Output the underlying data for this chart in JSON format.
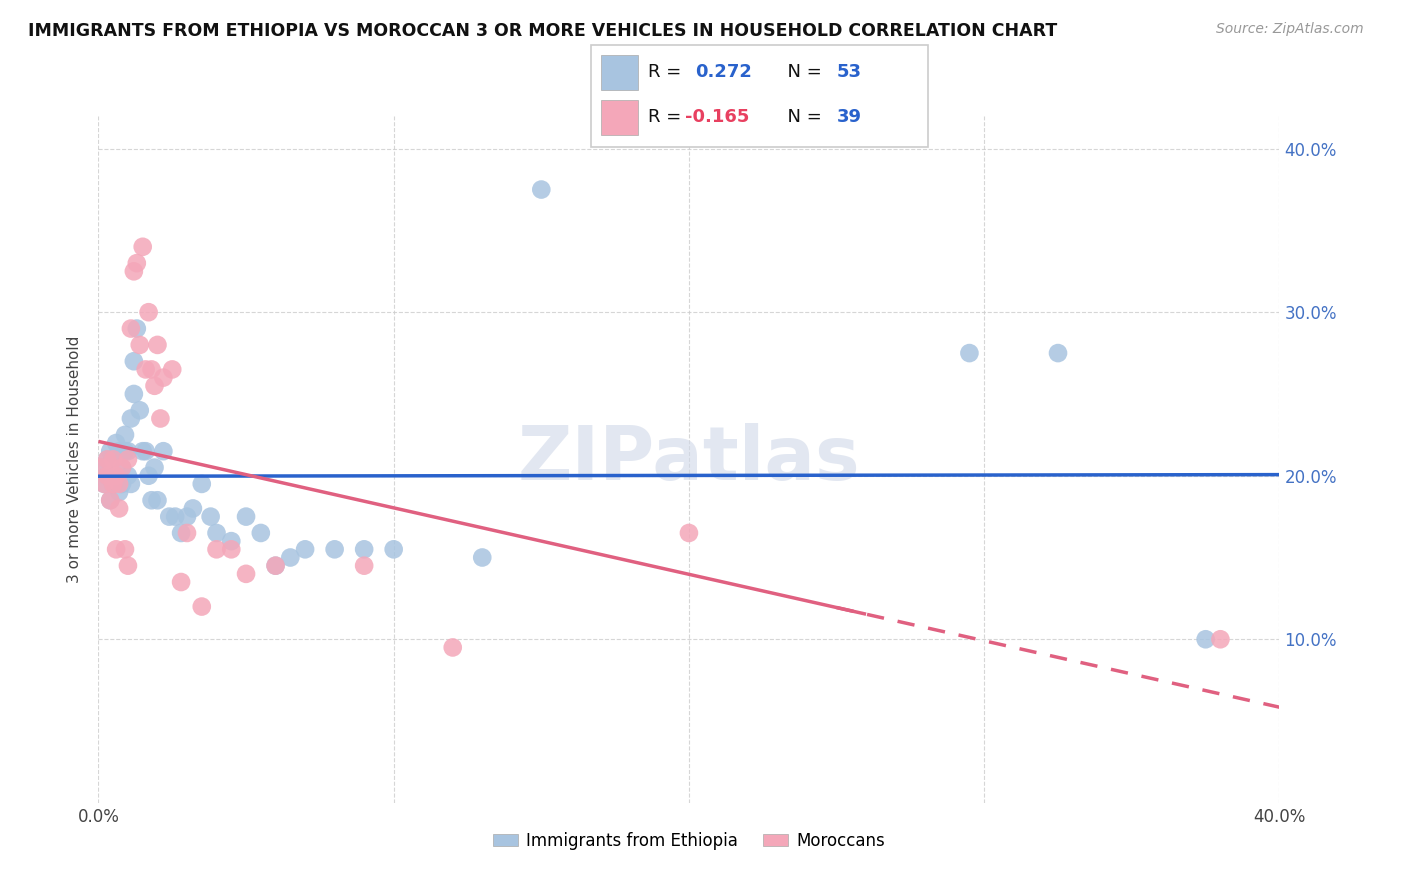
{
  "title": "IMMIGRANTS FROM ETHIOPIA VS MOROCCAN 3 OR MORE VEHICLES IN HOUSEHOLD CORRELATION CHART",
  "source": "Source: ZipAtlas.com",
  "ylabel": "3 or more Vehicles in Household",
  "xlim": [
    0.0,
    0.4
  ],
  "ylim": [
    0.0,
    0.42
  ],
  "yticklabels_right": [
    "10.0%",
    "20.0%",
    "30.0%",
    "40.0%"
  ],
  "ethiopia_color": "#a8c4e0",
  "morocco_color": "#f4a7b9",
  "ethiopia_line_color": "#2962cc",
  "morocco_line_color": "#e06080",
  "ethiopia_R": 0.272,
  "ethiopia_N": 53,
  "morocco_R": -0.165,
  "morocco_N": 39,
  "legend_label_1": "Immigrants from Ethiopia",
  "legend_label_2": "Moroccans",
  "watermark": "ZIPatlas",
  "ethiopia_x": [
    0.001,
    0.002,
    0.003,
    0.003,
    0.004,
    0.004,
    0.005,
    0.005,
    0.006,
    0.006,
    0.007,
    0.007,
    0.008,
    0.008,
    0.009,
    0.009,
    0.01,
    0.01,
    0.011,
    0.011,
    0.012,
    0.012,
    0.013,
    0.014,
    0.015,
    0.016,
    0.017,
    0.018,
    0.019,
    0.02,
    0.022,
    0.024,
    0.026,
    0.028,
    0.03,
    0.032,
    0.035,
    0.038,
    0.04,
    0.045,
    0.05,
    0.055,
    0.06,
    0.065,
    0.07,
    0.08,
    0.09,
    0.1,
    0.13,
    0.15,
    0.295,
    0.325,
    0.375
  ],
  "ethiopia_y": [
    0.205,
    0.195,
    0.21,
    0.2,
    0.185,
    0.215,
    0.195,
    0.21,
    0.2,
    0.22,
    0.19,
    0.215,
    0.205,
    0.195,
    0.215,
    0.225,
    0.2,
    0.215,
    0.195,
    0.235,
    0.25,
    0.27,
    0.29,
    0.24,
    0.215,
    0.215,
    0.2,
    0.185,
    0.205,
    0.185,
    0.215,
    0.175,
    0.175,
    0.165,
    0.175,
    0.18,
    0.195,
    0.175,
    0.165,
    0.16,
    0.175,
    0.165,
    0.145,
    0.15,
    0.155,
    0.155,
    0.155,
    0.155,
    0.15,
    0.375,
    0.275,
    0.275,
    0.1
  ],
  "morocco_x": [
    0.001,
    0.002,
    0.003,
    0.003,
    0.004,
    0.005,
    0.005,
    0.006,
    0.006,
    0.007,
    0.007,
    0.008,
    0.009,
    0.01,
    0.01,
    0.011,
    0.012,
    0.013,
    0.014,
    0.015,
    0.016,
    0.017,
    0.018,
    0.019,
    0.02,
    0.021,
    0.022,
    0.025,
    0.028,
    0.03,
    0.035,
    0.04,
    0.045,
    0.05,
    0.06,
    0.09,
    0.12,
    0.2,
    0.38
  ],
  "morocco_y": [
    0.205,
    0.195,
    0.21,
    0.2,
    0.185,
    0.21,
    0.195,
    0.155,
    0.2,
    0.18,
    0.195,
    0.205,
    0.155,
    0.21,
    0.145,
    0.29,
    0.325,
    0.33,
    0.28,
    0.34,
    0.265,
    0.3,
    0.265,
    0.255,
    0.28,
    0.235,
    0.26,
    0.265,
    0.135,
    0.165,
    0.12,
    0.155,
    0.155,
    0.14,
    0.145,
    0.145,
    0.095,
    0.165,
    0.1
  ]
}
